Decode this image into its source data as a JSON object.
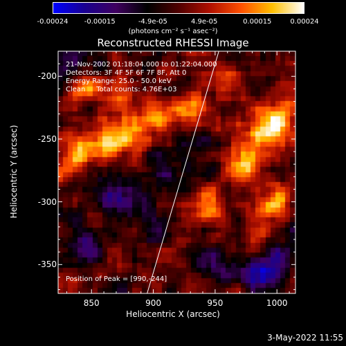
{
  "chart_data": {
    "type": "heatmap",
    "title": "Reconstructed RHESSI Image",
    "xlabel": "Heliocentric X (arcsec)",
    "ylabel": "Heliocentric Y (arcsec)",
    "xlim": [
      823,
      1015
    ],
    "ylim": [
      -373,
      -180
    ],
    "xticks": [
      850,
      900,
      950,
      1000
    ],
    "yticks": [
      -200,
      -250,
      -300,
      -350
    ],
    "colorbar": {
      "label": "(photons cm⁻² s⁻¹ asec⁻²)",
      "range": [
        -0.00024,
        0.00024
      ],
      "ticks": [
        {
          "value": -0.00024,
          "label": "-0.00024"
        },
        {
          "value": -0.00015,
          "label": "-0.00015"
        },
        {
          "value": -4.9e-05,
          "label": "-4.9e-05"
        },
        {
          "value": 4.9e-05,
          "label": "4.9e-05"
        },
        {
          "value": 0.00015,
          "label": "0.00015"
        },
        {
          "value": 0.00024,
          "label": "0.00024"
        }
      ],
      "colors": [
        "#0000ff",
        "#1a0090",
        "#400060",
        "#000000",
        "#500000",
        "#b01000",
        "#ff5000",
        "#ffc000",
        "#ffffff"
      ]
    },
    "annotations": [
      "21-Nov-2002 01:18:04.000 to 01:22:04.000",
      "Detectors: 3F 4F 5F 6F 7F 8F, Att 0",
      "Energy Range: 25.0 - 50.0 keV",
      "Clean     Total counts: 4.76E+03"
    ],
    "peak_label": "Position of Peak = [990,-244]",
    "peak": [
      990,
      -244
    ],
    "limb_line": [
      [
        895,
        -373
      ],
      [
        953,
        -180
      ]
    ],
    "bright_regions": [
      {
        "x": 835,
        "y": -265,
        "level": 1.0
      },
      {
        "x": 860,
        "y": -255,
        "level": 0.9
      },
      {
        "x": 880,
        "y": -245,
        "level": 0.8
      },
      {
        "x": 900,
        "y": -232,
        "level": 0.85
      },
      {
        "x": 930,
        "y": -225,
        "level": 0.75
      },
      {
        "x": 845,
        "y": -210,
        "level": 0.6
      },
      {
        "x": 870,
        "y": -215,
        "level": 0.55
      },
      {
        "x": 990,
        "y": -244,
        "level": 1.0
      },
      {
        "x": 1005,
        "y": -235,
        "level": 0.9
      },
      {
        "x": 975,
        "y": -270,
        "level": 0.8
      },
      {
        "x": 1000,
        "y": -300,
        "level": 0.75
      },
      {
        "x": 945,
        "y": -300,
        "level": 0.7
      },
      {
        "x": 960,
        "y": -205,
        "level": 0.6
      },
      {
        "x": 985,
        "y": -320,
        "level": 0.55
      }
    ],
    "dark_regions": [
      {
        "x": 985,
        "y": -360,
        "level": -1.0
      },
      {
        "x": 1005,
        "y": -345,
        "level": -0.8
      },
      {
        "x": 950,
        "y": -350,
        "level": -0.6
      },
      {
        "x": 880,
        "y": -300,
        "level": -0.7
      },
      {
        "x": 900,
        "y": -320,
        "level": -0.5
      },
      {
        "x": 845,
        "y": -340,
        "level": -0.55
      },
      {
        "x": 830,
        "y": -190,
        "level": -0.6
      },
      {
        "x": 910,
        "y": -275,
        "level": -0.45
      },
      {
        "x": 860,
        "y": -295,
        "level": -0.5
      },
      {
        "x": 935,
        "y": -255,
        "level": -0.4
      }
    ]
  },
  "footer": {
    "date": "3-May-2022 11:55"
  }
}
